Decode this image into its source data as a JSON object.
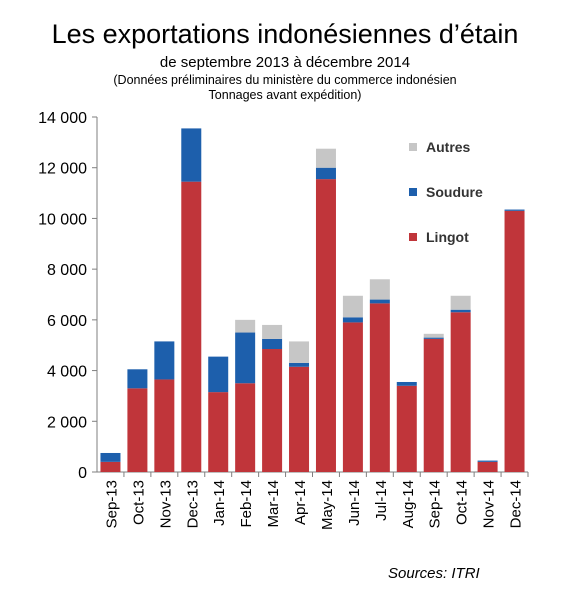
{
  "header": {
    "title": "Les exportations indonésiennes d’étain",
    "subtitle": "de septembre  2013 à décembre  2014",
    "note_line1": "(Données préliminaires du ministère du commerce indonésien",
    "note_line2": "Tonnages avant  expédition)"
  },
  "footer": {
    "source": "Sources: ITRI"
  },
  "colors": {
    "Lingot": "#c0353a",
    "Soudure": "#1d5fac",
    "Autres": "#c6c6c6",
    "axis": "#7f7f7f"
  },
  "chart_data": {
    "type": "bar",
    "stacked": true,
    "categories": [
      "Sep-13",
      "Oct-13",
      "Nov-13",
      "Dec-13",
      "Jan-14",
      "Feb-14",
      "Mar-14",
      "Apr-14",
      "May-14",
      "Jun-14",
      "Jul-14",
      "Aug-14",
      "Sep-14",
      "Oct-14",
      "Nov-14",
      "Dec-14"
    ],
    "series": [
      {
        "name": "Lingot",
        "values": [
          400,
          3300,
          3650,
          11450,
          3150,
          3500,
          4850,
          4150,
          11550,
          5900,
          6650,
          3400,
          5250,
          6300,
          400,
          10300
        ]
      },
      {
        "name": "Soudure",
        "values": [
          350,
          750,
          1500,
          2100,
          1400,
          2000,
          400,
          150,
          450,
          200,
          150,
          150,
          50,
          100,
          50,
          50
        ]
      },
      {
        "name": "Autres",
        "values": [
          0,
          0,
          0,
          0,
          0,
          500,
          550,
          850,
          750,
          850,
          800,
          0,
          150,
          550,
          0,
          0
        ]
      }
    ],
    "ylim": [
      0,
      14000
    ],
    "yticks": [
      0,
      2000,
      4000,
      6000,
      8000,
      10000,
      12000,
      14000
    ],
    "ytick_labels": [
      "0",
      "2 000",
      "4 000",
      "6 000",
      "8 000",
      "10 000",
      "12 000",
      "14 000"
    ],
    "legend": {
      "placement": "top-right",
      "order": [
        "Autres",
        "Soudure",
        "Lingot"
      ]
    },
    "grid": false
  }
}
